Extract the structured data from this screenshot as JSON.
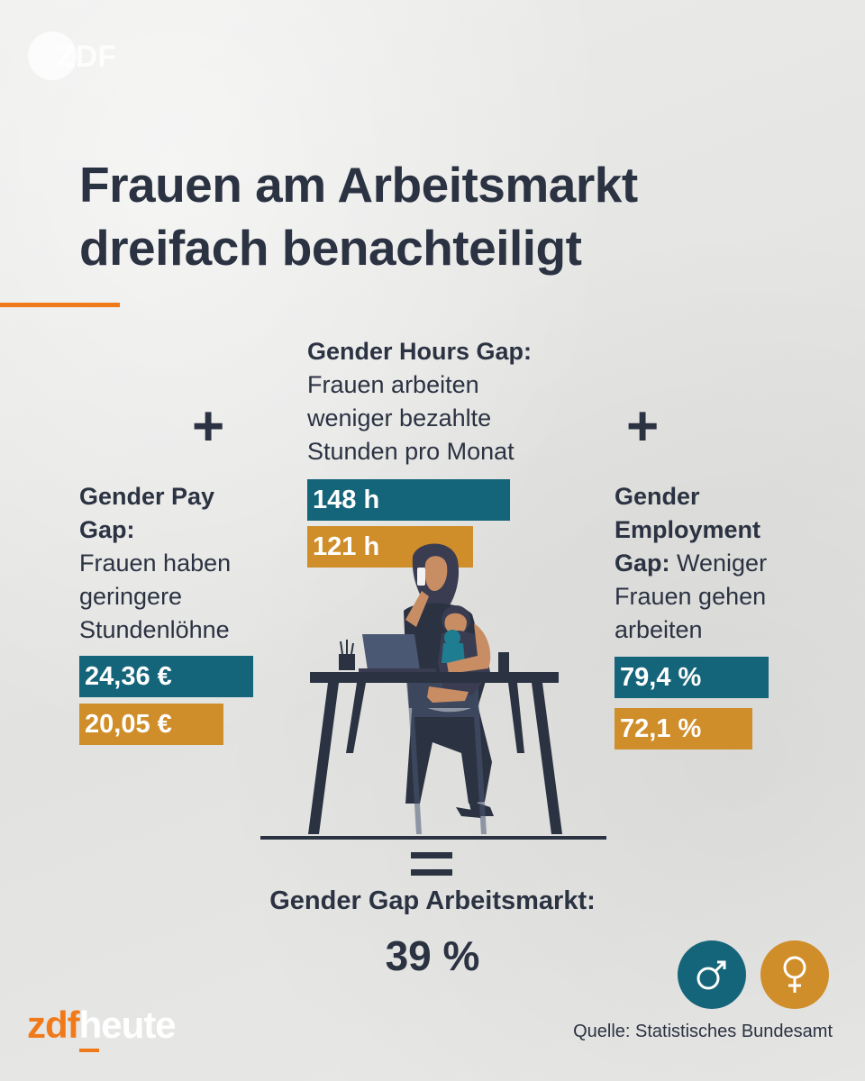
{
  "brand": {
    "top_logo": "ZDF",
    "footer_logo_part1": "zdf",
    "footer_logo_part2": "heute"
  },
  "title": {
    "line1": "Frauen am Arbeitsmarkt",
    "line2": "dreifach benachteiligt"
  },
  "operators": {
    "plus": "+",
    "equals": "="
  },
  "pay_gap": {
    "heading_line1": "Gender Pay",
    "heading_line2": "Gap:",
    "text_line1": "Frauen haben",
    "text_line2": "geringere",
    "text_line3": "Stundenlöhne",
    "male_value": "24,36 €",
    "female_value": "20,05 €"
  },
  "hours_gap": {
    "heading": "Gender Hours Gap:",
    "text_line1": "Frauen arbeiten",
    "text_line2": "weniger bezahlte",
    "text_line3": "Stunden pro Monat",
    "male_value": "148 h",
    "female_value": "121 h"
  },
  "employment_gap": {
    "heading_line1": "Gender",
    "heading_line2": "Employment",
    "heading_line3": "Gap:",
    "text_line1": " Weniger",
    "text_line2": "Frauen gehen",
    "text_line3": "arbeiten",
    "male_value": "79,4 %",
    "female_value": "72,1 %"
  },
  "result": {
    "label": "Gender Gap Arbeitsmarkt:",
    "value": "39 %"
  },
  "legend": {
    "male_symbol": "♂",
    "female_symbol": "♀",
    "male_color": "#15657a",
    "female_color": "#d08e2a"
  },
  "source": "Quelle: Statistisches Bundesamt",
  "colors": {
    "accent_orange": "#f07a1a",
    "text_dark": "#2b3242"
  }
}
